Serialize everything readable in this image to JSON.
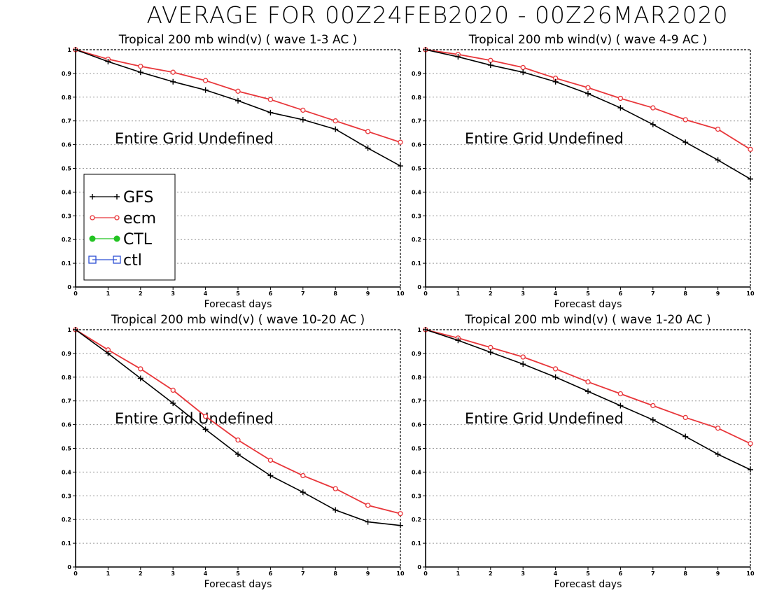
{
  "page_title": "AVERAGE FOR 00Z24FEB2020 - 00Z26MAR2020",
  "colors": {
    "GFS": "#000000",
    "ecm": "#e8363a",
    "CTL": "#22c322",
    "ctl": "#2c4fd4"
  },
  "legend_entries": [
    {
      "label": "GFS",
      "marker": "plus"
    },
    {
      "label": "ecm",
      "marker": "circle"
    },
    {
      "label": "CTL",
      "marker": "dot"
    },
    {
      "label": "ctl",
      "marker": "square"
    }
  ],
  "chart_data": [
    {
      "type": "line",
      "title": "Tropical 200 mb wind(v) ( wave 1-3 AC )",
      "xlabel": "Forecast days",
      "ylabel": "",
      "x": [
        0,
        1,
        2,
        3,
        4,
        5,
        6,
        7,
        8,
        9,
        10
      ],
      "xlim": [
        0,
        10
      ],
      "ylim": [
        0,
        1
      ],
      "yticks": [
        "0",
        "0.1",
        "0.2",
        "0.3",
        "0.4",
        "0.5",
        "0.6",
        "0.7",
        "0.8",
        "0.9",
        "1"
      ],
      "grid": true,
      "legend": "bottom-left",
      "annotation": "Entire Grid Undefined",
      "series": [
        {
          "name": "GFS",
          "values": [
            1.0,
            0.95,
            0.905,
            0.865,
            0.83,
            0.785,
            0.735,
            0.705,
            0.665,
            0.585,
            0.51
          ]
        },
        {
          "name": "ecm",
          "values": [
            1.0,
            0.96,
            0.93,
            0.905,
            0.87,
            0.825,
            0.79,
            0.745,
            0.7,
            0.655,
            0.61
          ]
        }
      ]
    },
    {
      "type": "line",
      "title": "Tropical 200 mb wind(v) ( wave 4-9 AC )",
      "xlabel": "Forecast days",
      "ylabel": "",
      "x": [
        0,
        1,
        2,
        3,
        4,
        5,
        6,
        7,
        8,
        9,
        10
      ],
      "xlim": [
        0,
        10
      ],
      "ylim": [
        0,
        1
      ],
      "yticks": [
        "0",
        "0.1",
        "0.2",
        "0.3",
        "0.4",
        "0.5",
        "0.6",
        "0.7",
        "0.8",
        "0.9",
        "1"
      ],
      "grid": true,
      "legend": "",
      "annotation": "Entire Grid Undefined",
      "series": [
        {
          "name": "GFS",
          "values": [
            1.0,
            0.97,
            0.935,
            0.905,
            0.865,
            0.815,
            0.755,
            0.685,
            0.61,
            0.535,
            0.455
          ]
        },
        {
          "name": "ecm",
          "values": [
            1.0,
            0.98,
            0.955,
            0.925,
            0.88,
            0.84,
            0.795,
            0.755,
            0.705,
            0.665,
            0.58
          ]
        }
      ]
    },
    {
      "type": "line",
      "title": "Tropical 200 mb wind(v) ( wave 10-20 AC )",
      "xlabel": "Forecast days",
      "ylabel": "",
      "x": [
        0,
        1,
        2,
        3,
        4,
        5,
        6,
        7,
        8,
        9,
        10
      ],
      "xlim": [
        0,
        10
      ],
      "ylim": [
        0,
        1
      ],
      "yticks": [
        "0",
        "0.1",
        "0.2",
        "0.3",
        "0.4",
        "0.5",
        "0.6",
        "0.7",
        "0.8",
        "0.9",
        "1"
      ],
      "grid": true,
      "legend": "",
      "annotation": "Entire Grid Undefined",
      "series": [
        {
          "name": "GFS",
          "values": [
            1.0,
            0.9,
            0.795,
            0.69,
            0.58,
            0.475,
            0.385,
            0.315,
            0.24,
            0.19,
            0.175
          ]
        },
        {
          "name": "ecm",
          "values": [
            1.0,
            0.915,
            0.835,
            0.745,
            0.635,
            0.535,
            0.45,
            0.385,
            0.33,
            0.26,
            0.225
          ]
        }
      ]
    },
    {
      "type": "line",
      "title": "Tropical 200 mb wind(v) ( wave 1-20 AC )",
      "xlabel": "Forecast days",
      "ylabel": "",
      "x": [
        0,
        1,
        2,
        3,
        4,
        5,
        6,
        7,
        8,
        9,
        10
      ],
      "xlim": [
        0,
        10
      ],
      "ylim": [
        0,
        1
      ],
      "yticks": [
        "0",
        "0.1",
        "0.2",
        "0.3",
        "0.4",
        "0.5",
        "0.6",
        "0.7",
        "0.8",
        "0.9",
        "1"
      ],
      "grid": true,
      "legend": "",
      "annotation": "Entire Grid Undefined",
      "series": [
        {
          "name": "GFS",
          "values": [
            1.0,
            0.955,
            0.905,
            0.855,
            0.8,
            0.74,
            0.68,
            0.62,
            0.55,
            0.475,
            0.41
          ]
        },
        {
          "name": "ecm",
          "values": [
            1.0,
            0.965,
            0.925,
            0.885,
            0.835,
            0.78,
            0.73,
            0.68,
            0.63,
            0.585,
            0.52
          ]
        }
      ]
    }
  ]
}
